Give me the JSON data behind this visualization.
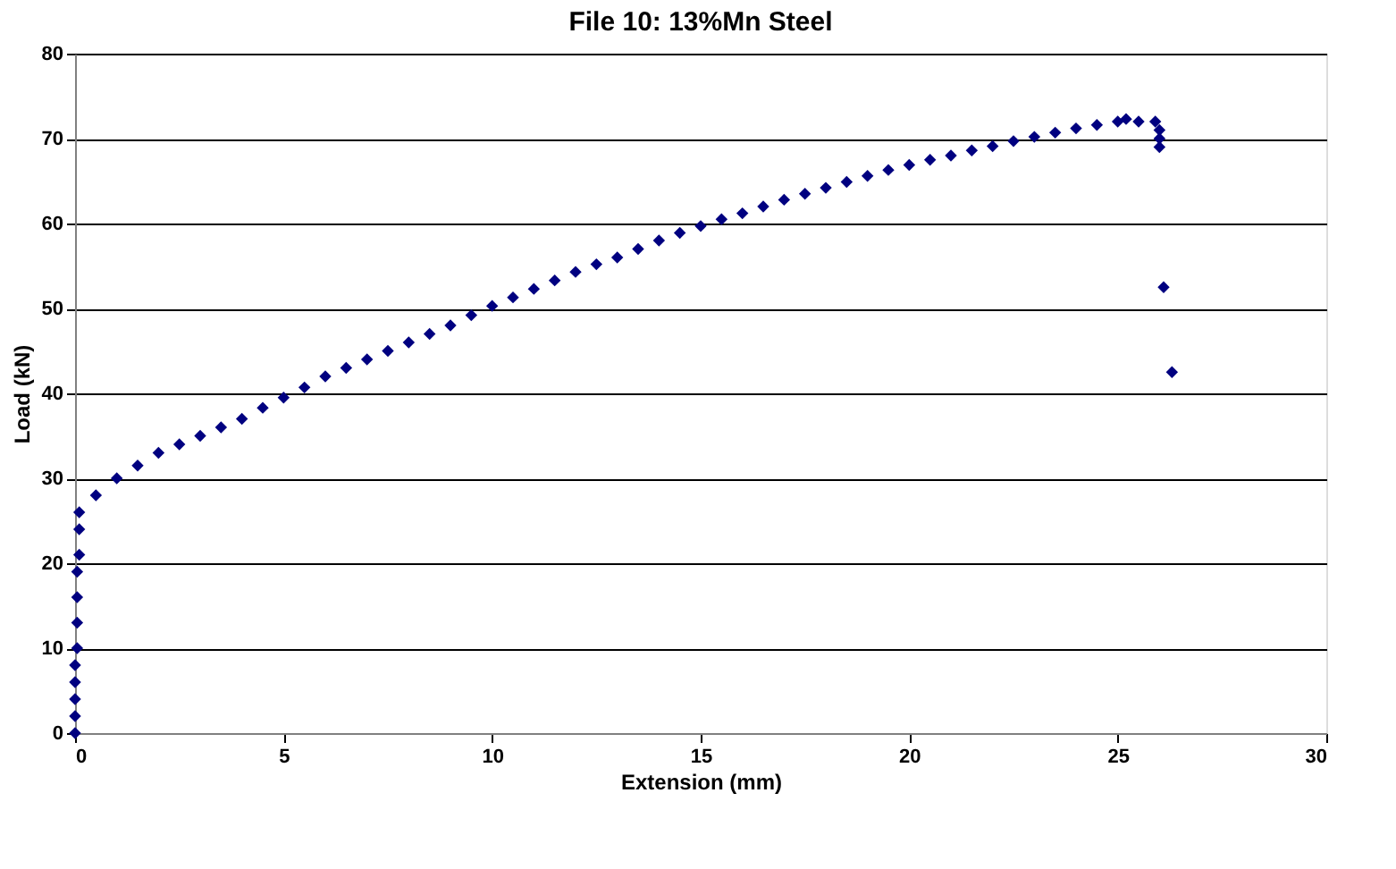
{
  "chart_data": {
    "type": "scatter",
    "title": "File 10: 13%Mn Steel",
    "xlabel": "Extension (mm)",
    "ylabel": "Load (kN)",
    "x": [
      0,
      0,
      0,
      0,
      0,
      0.05,
      0.05,
      0.05,
      0.05,
      0.1,
      0.1,
      0.1,
      0.5,
      1,
      1.5,
      2,
      2.5,
      3,
      3.5,
      4,
      4.5,
      5,
      5.5,
      6,
      6.5,
      7,
      7.5,
      8,
      8.5,
      9,
      9.5,
      10,
      10.5,
      11,
      11.5,
      12,
      12.5,
      13,
      13.5,
      14,
      14.5,
      15,
      15.5,
      16,
      16.5,
      17,
      17.5,
      18,
      18.5,
      19,
      19.5,
      20,
      20.5,
      21,
      21.5,
      22,
      22.5,
      23,
      23.5,
      24,
      24.5,
      25,
      25.2,
      25.5,
      25.9,
      26,
      26,
      26,
      26.1,
      26.3
    ],
    "values": [
      0,
      2,
      4,
      6,
      8,
      10,
      13,
      16,
      19,
      21,
      24,
      26,
      28,
      30,
      31.5,
      33,
      34,
      35,
      36,
      37,
      38.3,
      39.5,
      40.7,
      42,
      43,
      44,
      45,
      46,
      47,
      48,
      49.2,
      50.3,
      51.3,
      52.3,
      53.3,
      54.3,
      55.2,
      56,
      57,
      58,
      58.9,
      59.7,
      60.5,
      61.2,
      62,
      62.8,
      63.5,
      64.2,
      64.9,
      65.6,
      66.3,
      66.9,
      67.5,
      68,
      68.6,
      69.1,
      69.7,
      70.2,
      70.7,
      71.2,
      71.6,
      72,
      72.3,
      72,
      72,
      71,
      70,
      69,
      52.5,
      42.5
    ],
    "color": "#000080",
    "marker": "diamond",
    "xlim": [
      0,
      30
    ],
    "ylim": [
      0,
      80
    ],
    "xticks": [
      0,
      5,
      10,
      15,
      20,
      25,
      30
    ],
    "yticks": [
      0,
      10,
      20,
      30,
      40,
      50,
      60,
      70,
      80
    ],
    "grid": "y"
  }
}
